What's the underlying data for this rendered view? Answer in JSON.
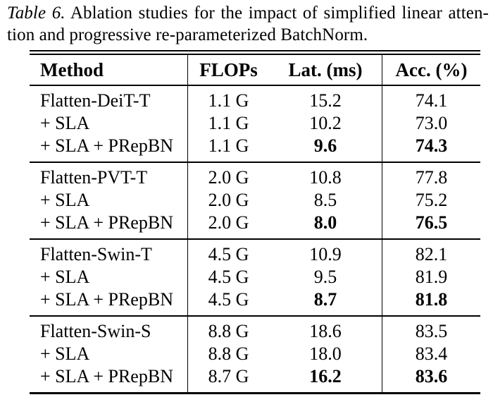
{
  "caption": {
    "label": "Table 6.",
    "line1": "Ablation studies for the impact of simplified linear atten-",
    "line2": "tion and progressive re-parameterized BatchNorm."
  },
  "table": {
    "headers": [
      "Method",
      "FLOPs",
      "Lat. (ms)",
      "Acc. (%)"
    ],
    "groups": [
      {
        "rows": [
          {
            "method": "Flatten-DeiT-T",
            "flops": "1.1 G",
            "lat": "15.2",
            "acc": "74.1"
          },
          {
            "method": "+ SLA",
            "flops": "1.1 G",
            "lat": "10.2",
            "acc": "73.0"
          },
          {
            "method": "+ SLA + PRepBN",
            "flops": "1.1 G",
            "lat": "9.6",
            "acc": "74.3"
          }
        ]
      },
      {
        "rows": [
          {
            "method": "Flatten-PVT-T",
            "flops": "2.0 G",
            "lat": "10.8",
            "acc": "77.8"
          },
          {
            "method": "+ SLA",
            "flops": "2.0 G",
            "lat": "8.5",
            "acc": "75.2"
          },
          {
            "method": "+ SLA + PRepBN",
            "flops": "2.0 G",
            "lat": "8.0",
            "acc": "76.5"
          }
        ]
      },
      {
        "rows": [
          {
            "method": "Flatten-Swin-T",
            "flops": "4.5 G",
            "lat": "10.9",
            "acc": "82.1"
          },
          {
            "method": "+ SLA",
            "flops": "4.5 G",
            "lat": "9.5",
            "acc": "81.9"
          },
          {
            "method": "+ SLA + PRepBN",
            "flops": "4.5 G",
            "lat": "8.7",
            "acc": "81.8"
          }
        ]
      },
      {
        "rows": [
          {
            "method": "Flatten-Swin-S",
            "flops": "8.8 G",
            "lat": "18.6",
            "acc": "83.5"
          },
          {
            "method": "+ SLA",
            "flops": "8.8 G",
            "lat": "18.0",
            "acc": "83.4"
          },
          {
            "method": "+ SLA + PRepBN",
            "flops": "8.7 G",
            "lat": "16.2",
            "acc": "83.6"
          }
        ]
      }
    ]
  }
}
